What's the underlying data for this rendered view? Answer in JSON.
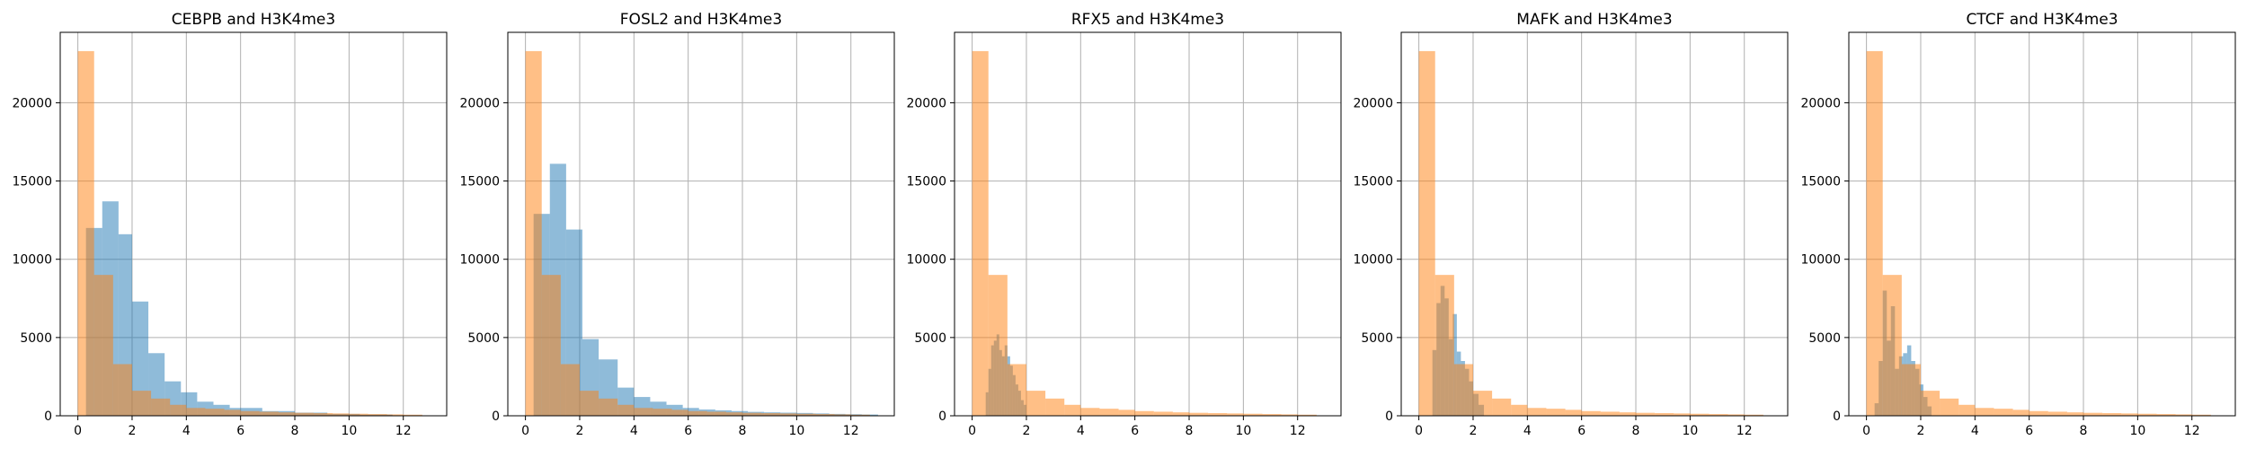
{
  "figure": {
    "background": "#ffffff"
  },
  "colors": {
    "tf_series": "#1f77b4",
    "mark_series": "#ff7f0e"
  },
  "chart_data": [
    {
      "type": "histogram",
      "title": "CEBPB and H3K4me3",
      "xlim": [
        -0.65,
        13.6
      ],
      "ylim": [
        0,
        24500
      ],
      "xticks": [
        0,
        2,
        4,
        6,
        8,
        10,
        12
      ],
      "yticks": [
        0,
        5000,
        10000,
        15000,
        20000
      ],
      "grid": true,
      "alpha": 0.5,
      "series": [
        {
          "edges": [
            0.3,
            0.9,
            1.5,
            2.0,
            2.6,
            3.2,
            3.8,
            4.4,
            5.0,
            5.6,
            6.8,
            8.0,
            9.2,
            10.4,
            11.6
          ],
          "counts": [
            12000,
            13700,
            11600,
            7300,
            4000,
            2200,
            1500,
            900,
            700,
            500,
            300,
            200,
            120,
            80
          ]
        },
        {
          "edges": [
            0.0,
            0.6,
            1.3,
            2.0,
            2.7,
            3.4,
            4.0,
            4.7,
            5.4,
            6.0,
            6.7,
            7.4,
            8.0,
            8.7,
            9.4,
            10.0,
            10.7,
            11.4,
            12.0,
            12.7
          ],
          "counts": [
            23300,
            9000,
            3300,
            1600,
            1100,
            700,
            500,
            450,
            380,
            300,
            260,
            220,
            190,
            170,
            150,
            130,
            110,
            90,
            70
          ]
        }
      ]
    },
    {
      "type": "histogram",
      "title": "FOSL2 and H3K4me3",
      "xlim": [
        -0.65,
        13.6
      ],
      "ylim": [
        0,
        24500
      ],
      "xticks": [
        0,
        2,
        4,
        6,
        8,
        10,
        12
      ],
      "yticks": [
        0,
        5000,
        10000,
        15000,
        20000
      ],
      "grid": true,
      "alpha": 0.5,
      "series": [
        {
          "edges": [
            0.3,
            0.9,
            1.5,
            2.1,
            2.7,
            3.4,
            4.0,
            4.6,
            5.2,
            5.8,
            6.4,
            7.0,
            7.6,
            8.2,
            8.8,
            9.4,
            10.0,
            10.6,
            11.2,
            11.8,
            12.4,
            13.0
          ],
          "counts": [
            12900,
            16100,
            11900,
            4900,
            3600,
            1800,
            1200,
            900,
            700,
            500,
            400,
            350,
            300,
            250,
            220,
            200,
            180,
            150,
            120,
            100,
            80
          ]
        },
        {
          "edges": [
            0.0,
            0.6,
            1.3,
            2.0,
            2.7,
            3.4,
            4.0,
            4.7,
            5.4,
            6.0,
            6.7,
            7.4,
            8.0,
            8.7,
            9.4,
            10.0,
            10.7,
            11.4,
            12.0,
            12.7
          ],
          "counts": [
            23300,
            9000,
            3300,
            1600,
            1100,
            700,
            500,
            450,
            380,
            300,
            260,
            220,
            190,
            170,
            150,
            130,
            110,
            90,
            70
          ]
        }
      ]
    },
    {
      "type": "histogram",
      "title": "RFX5 and H3K4me3",
      "xlim": [
        -0.65,
        13.6
      ],
      "ylim": [
        0,
        24500
      ],
      "xticks": [
        0,
        2,
        4,
        6,
        8,
        10,
        12
      ],
      "yticks": [
        0,
        5000,
        10000,
        15000,
        20000
      ],
      "grid": true,
      "alpha": 0.5,
      "series": [
        {
          "edges": [
            0.5,
            0.6,
            0.7,
            0.8,
            0.9,
            1.0,
            1.1,
            1.2,
            1.3,
            1.4,
            1.5,
            1.6,
            1.7,
            1.8,
            1.9,
            2.0
          ],
          "counts": [
            1500,
            3000,
            4500,
            4800,
            5200,
            4200,
            3800,
            4500,
            3800,
            3200,
            2600,
            2000,
            1600,
            1000,
            700
          ]
        },
        {
          "edges": [
            0.0,
            0.6,
            1.3,
            2.0,
            2.7,
            3.4,
            4.0,
            4.7,
            5.4,
            6.0,
            6.7,
            7.4,
            8.0,
            8.7,
            9.4,
            10.0,
            10.7,
            11.4,
            12.0,
            12.7
          ],
          "counts": [
            23300,
            9000,
            3300,
            1600,
            1100,
            700,
            500,
            450,
            380,
            300,
            260,
            220,
            190,
            170,
            150,
            130,
            110,
            90,
            70
          ]
        }
      ]
    },
    {
      "type": "histogram",
      "title": "MAFK and H3K4me3",
      "xlim": [
        -0.65,
        13.6
      ],
      "ylim": [
        0,
        24500
      ],
      "xticks": [
        0,
        2,
        4,
        6,
        8,
        10,
        12
      ],
      "yticks": [
        0,
        5000,
        10000,
        15000,
        20000
      ],
      "grid": true,
      "alpha": 0.5,
      "series": [
        {
          "edges": [
            0.5,
            0.65,
            0.8,
            0.95,
            1.1,
            1.25,
            1.4,
            1.55,
            1.7,
            1.85,
            2.0,
            2.2,
            2.4
          ],
          "counts": [
            4200,
            7200,
            8300,
            7500,
            4900,
            6500,
            4100,
            3500,
            3000,
            2200,
            1400,
            700
          ]
        },
        {
          "edges": [
            0.0,
            0.6,
            1.3,
            2.0,
            2.7,
            3.4,
            4.0,
            4.7,
            5.4,
            6.0,
            6.7,
            7.4,
            8.0,
            8.7,
            9.4,
            10.0,
            10.7,
            11.4,
            12.0,
            12.7
          ],
          "counts": [
            23300,
            9000,
            3300,
            1600,
            1100,
            700,
            500,
            450,
            380,
            300,
            260,
            220,
            190,
            170,
            150,
            130,
            110,
            90,
            70
          ]
        }
      ]
    },
    {
      "type": "histogram",
      "title": "CTCF and H3K4me3",
      "xlim": [
        -0.65,
        13.6
      ],
      "ylim": [
        0,
        24500
      ],
      "xticks": [
        0,
        2,
        4,
        6,
        8,
        10,
        12
      ],
      "yticks": [
        0,
        5000,
        10000,
        15000,
        20000
      ],
      "grid": true,
      "alpha": 0.5,
      "series": [
        {
          "edges": [
            0.3,
            0.45,
            0.6,
            0.75,
            0.9,
            1.05,
            1.2,
            1.35,
            1.5,
            1.65,
            1.8,
            1.95,
            2.1,
            2.25,
            2.4
          ],
          "counts": [
            800,
            3500,
            8000,
            4800,
            7000,
            3000,
            3800,
            4000,
            4500,
            3500,
            3000,
            2000,
            1200,
            600
          ]
        },
        {
          "edges": [
            0.0,
            0.6,
            1.3,
            2.0,
            2.7,
            3.4,
            4.0,
            4.7,
            5.4,
            6.0,
            6.7,
            7.4,
            8.0,
            8.7,
            9.4,
            10.0,
            10.7,
            11.4,
            12.0,
            12.7
          ],
          "counts": [
            23300,
            9000,
            3300,
            1600,
            1100,
            700,
            500,
            450,
            380,
            300,
            260,
            220,
            190,
            170,
            150,
            130,
            110,
            90,
            70
          ]
        }
      ]
    }
  ]
}
